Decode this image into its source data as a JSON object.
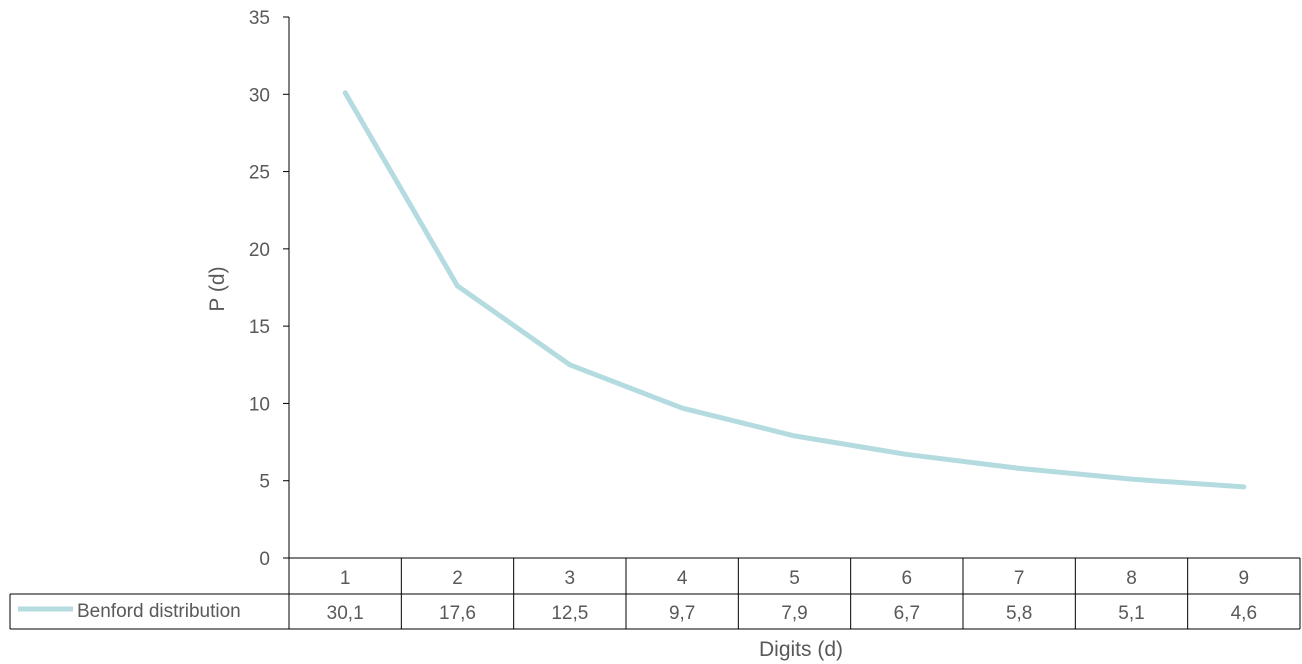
{
  "chart_data": {
    "type": "line",
    "title": "",
    "xlabel": "Digits (d)",
    "ylabel": "P (d)",
    "ylim": [
      0,
      35
    ],
    "yticks": [
      "0",
      "5",
      "10",
      "15",
      "20",
      "25",
      "30",
      "35"
    ],
    "categories": [
      "1",
      "2",
      "3",
      "4",
      "5",
      "6",
      "7",
      "8",
      "9"
    ],
    "series": [
      {
        "name": "Benford distribution",
        "values": [
          30.1,
          17.6,
          12.5,
          9.7,
          7.9,
          6.7,
          5.8,
          5.1,
          4.6
        ],
        "labels": [
          "30,1",
          "17,6",
          "12,5",
          "9,7",
          "7,9",
          "6,7",
          "5,8",
          "5,1",
          "4,6"
        ],
        "color": "#b4dce0"
      }
    ],
    "data_table": true,
    "grid": false,
    "legend": "in data table"
  }
}
